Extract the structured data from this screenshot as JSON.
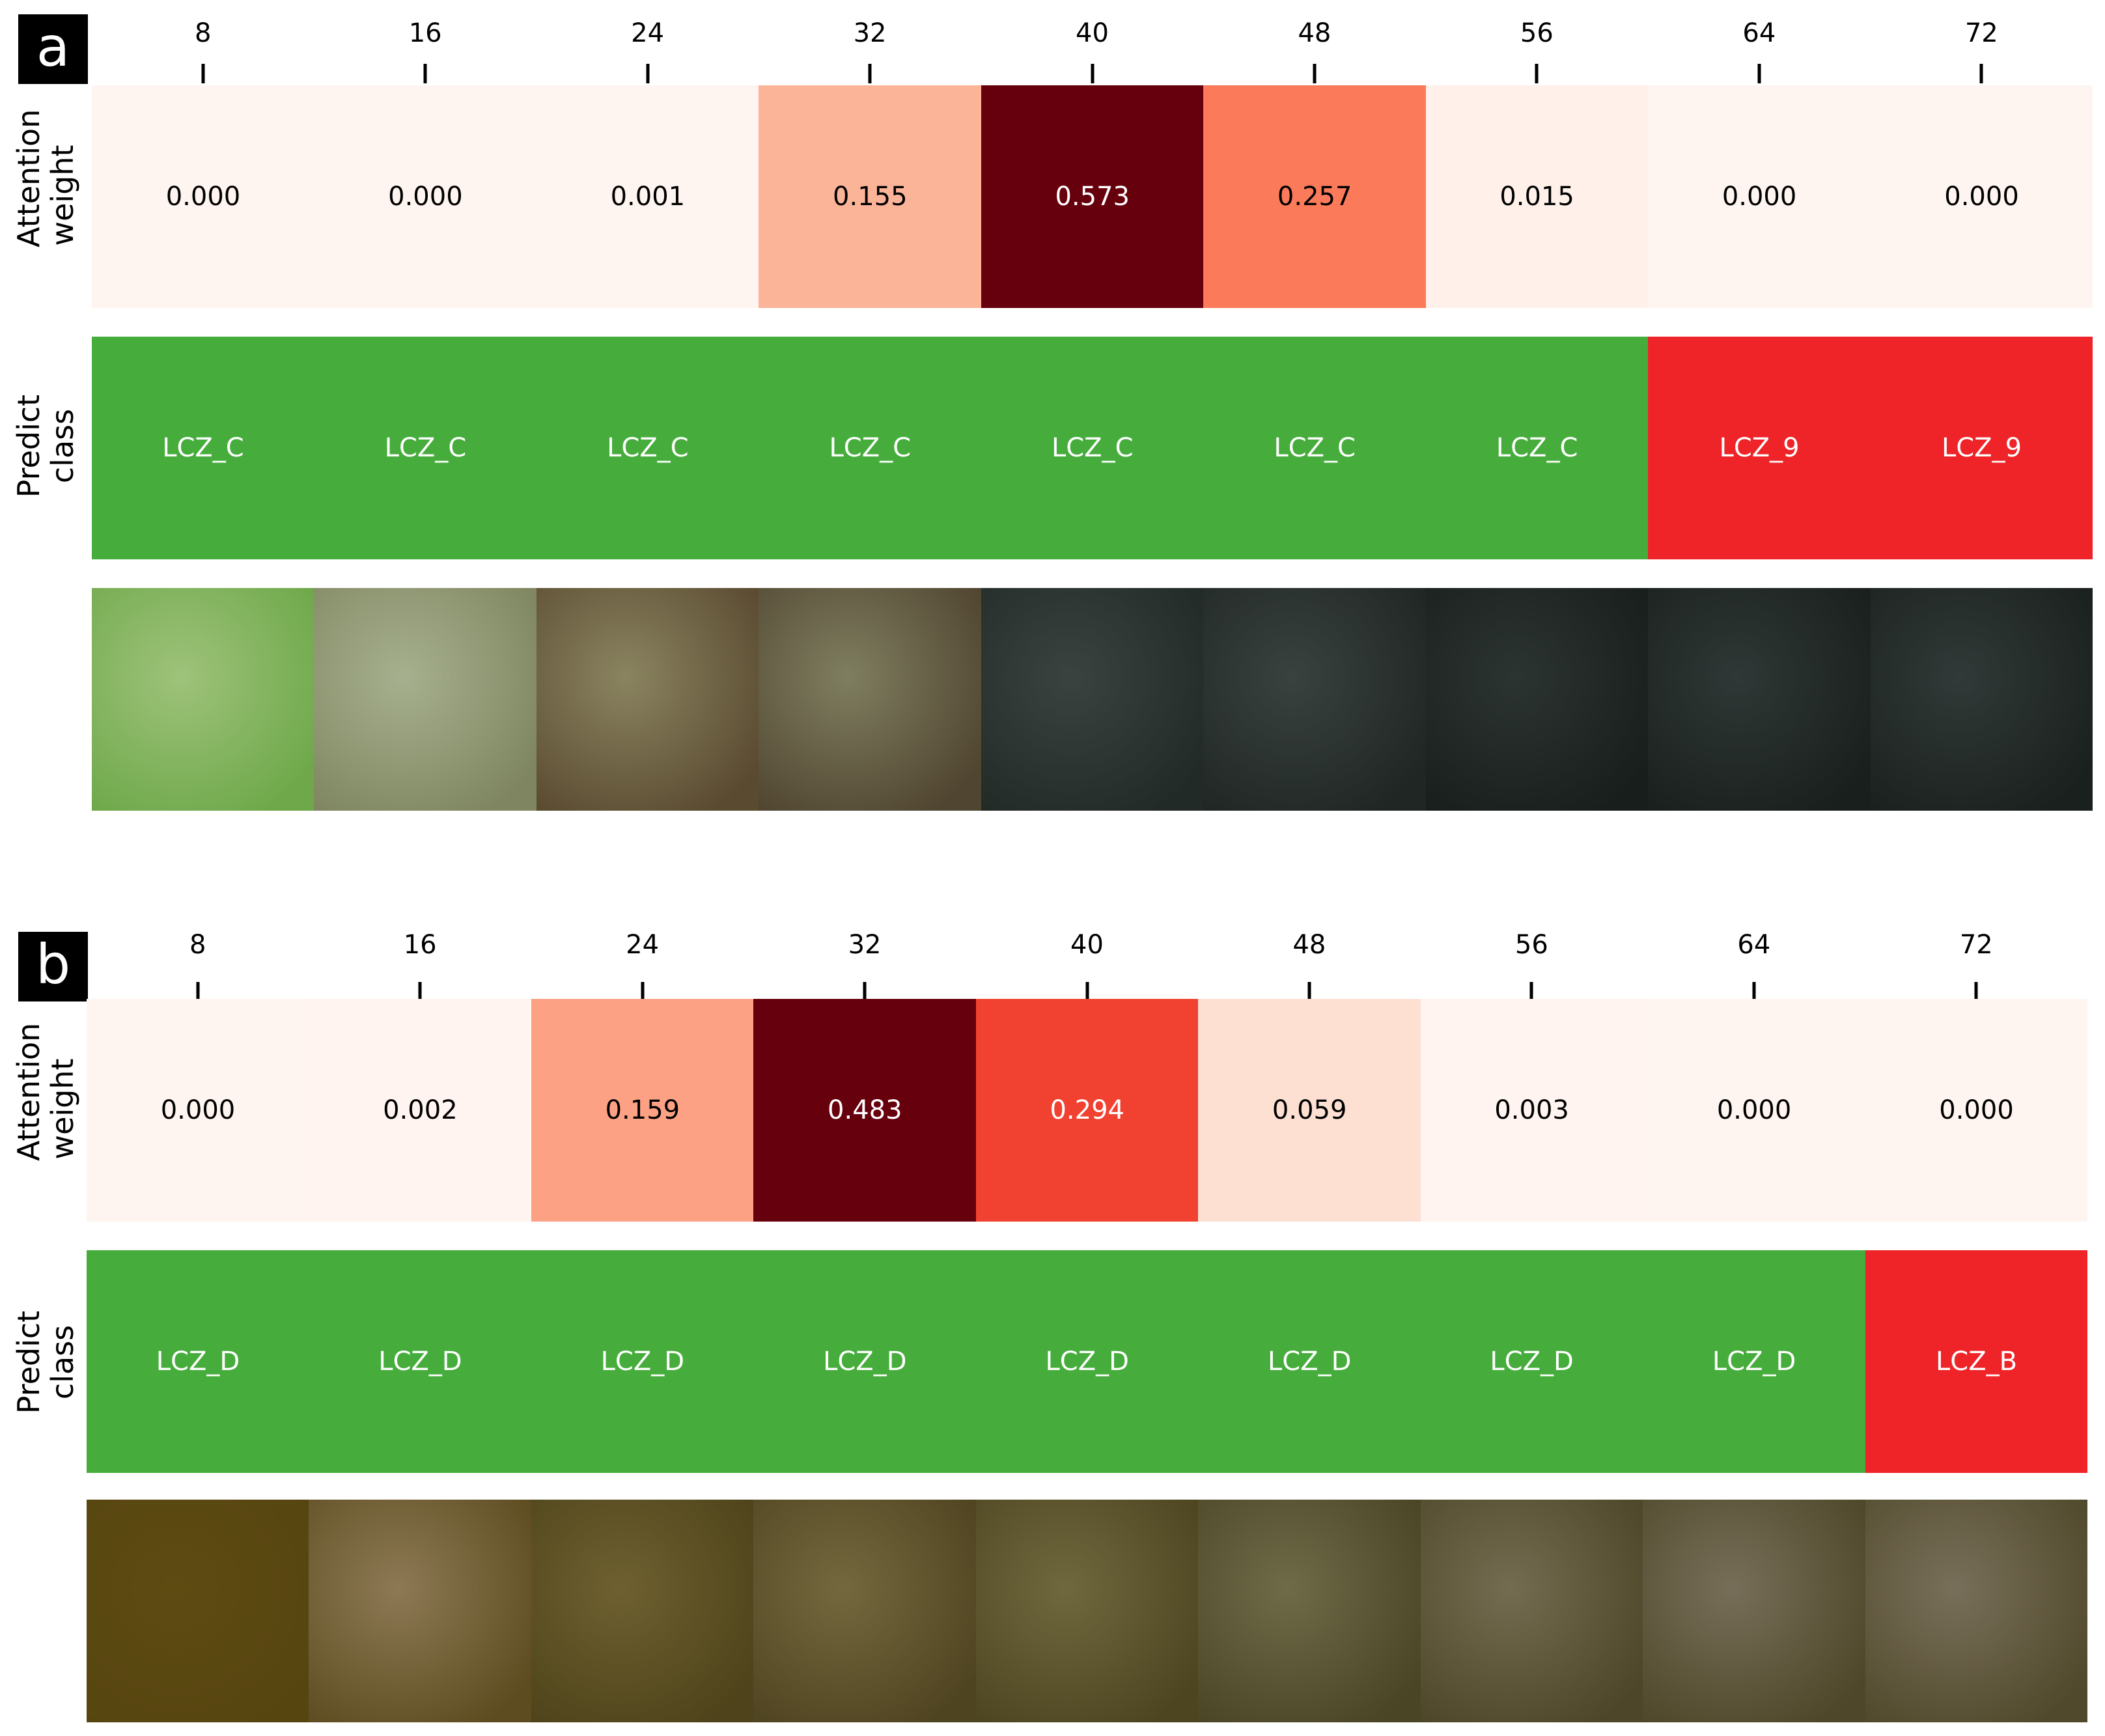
{
  "chart_data": [
    {
      "type": "heatmap",
      "panel_label": "a",
      "x_ticks": [
        "8",
        "16",
        "24",
        "32",
        "40",
        "48",
        "56",
        "64",
        "72"
      ],
      "rows": [
        {
          "label_line1": "Attention",
          "label_line2": "weight",
          "values": [
            0.0,
            0.0,
            0.001,
            0.155,
            0.573,
            0.257,
            0.015,
            0.0,
            0.0
          ],
          "display": [
            "0.000",
            "0.000",
            "0.001",
            "0.155",
            "0.573",
            "0.257",
            "0.015",
            "0.000",
            "0.000"
          ]
        },
        {
          "label_line1": "Predict",
          "label_line2": "class",
          "classes": [
            "LCZ_C",
            "LCZ_C",
            "LCZ_C",
            "LCZ_C",
            "LCZ_C",
            "LCZ_C",
            "LCZ_C",
            "LCZ_9",
            "LCZ_9"
          ]
        }
      ],
      "class_colors": {
        "LCZ_C": "#46ad3c",
        "LCZ_9": "#ee2428"
      },
      "thumbnails": [
        [
          "#9ec27a",
          "#6ea84a"
        ],
        [
          "#a7b08e",
          "#7e8560"
        ],
        [
          "#8a8460",
          "#5a4a30"
        ],
        [
          "#7f7e60",
          "#504530"
        ],
        [
          "#3b4340",
          "#222a28"
        ],
        [
          "#3a4240",
          "#1f2624"
        ],
        [
          "#2c3432",
          "#181e1c"
        ],
        [
          "#2f3836",
          "#191f1d"
        ],
        [
          "#313a38",
          "#1a201e"
        ]
      ]
    },
    {
      "type": "heatmap",
      "panel_label": "b",
      "x_ticks": [
        "8",
        "16",
        "24",
        "32",
        "40",
        "48",
        "56",
        "64",
        "72"
      ],
      "rows": [
        {
          "label_line1": "Attention",
          "label_line2": "weight",
          "values": [
            0.0,
            0.002,
            0.159,
            0.483,
            0.294,
            0.059,
            0.003,
            0.0,
            0.0
          ],
          "display": [
            "0.000",
            "0.002",
            "0.159",
            "0.483",
            "0.294",
            "0.059",
            "0.003",
            "0.000",
            "0.000"
          ]
        },
        {
          "label_line1": "Predict",
          "label_line2": "class",
          "classes": [
            "LCZ_D",
            "LCZ_D",
            "LCZ_D",
            "LCZ_D",
            "LCZ_D",
            "LCZ_D",
            "LCZ_D",
            "LCZ_D",
            "LCZ_B"
          ]
        }
      ],
      "class_colors": {
        "LCZ_D": "#46ad3c",
        "LCZ_B": "#ee2428"
      },
      "thumbnails": [
        [
          "#5e4b12",
          "#574510"
        ],
        [
          "#8d7a55",
          "#5d4c20"
        ],
        [
          "#6e6030",
          "#4e431a"
        ],
        [
          "#74683e",
          "#4f4420"
        ],
        [
          "#6f683e",
          "#4c4520"
        ],
        [
          "#6f6a48",
          "#4a4525"
        ],
        [
          "#736c50",
          "#4e4628"
        ],
        [
          "#766e58",
          "#4f4729"
        ],
        [
          "#786f5a",
          "#51492b"
        ]
      ]
    }
  ]
}
